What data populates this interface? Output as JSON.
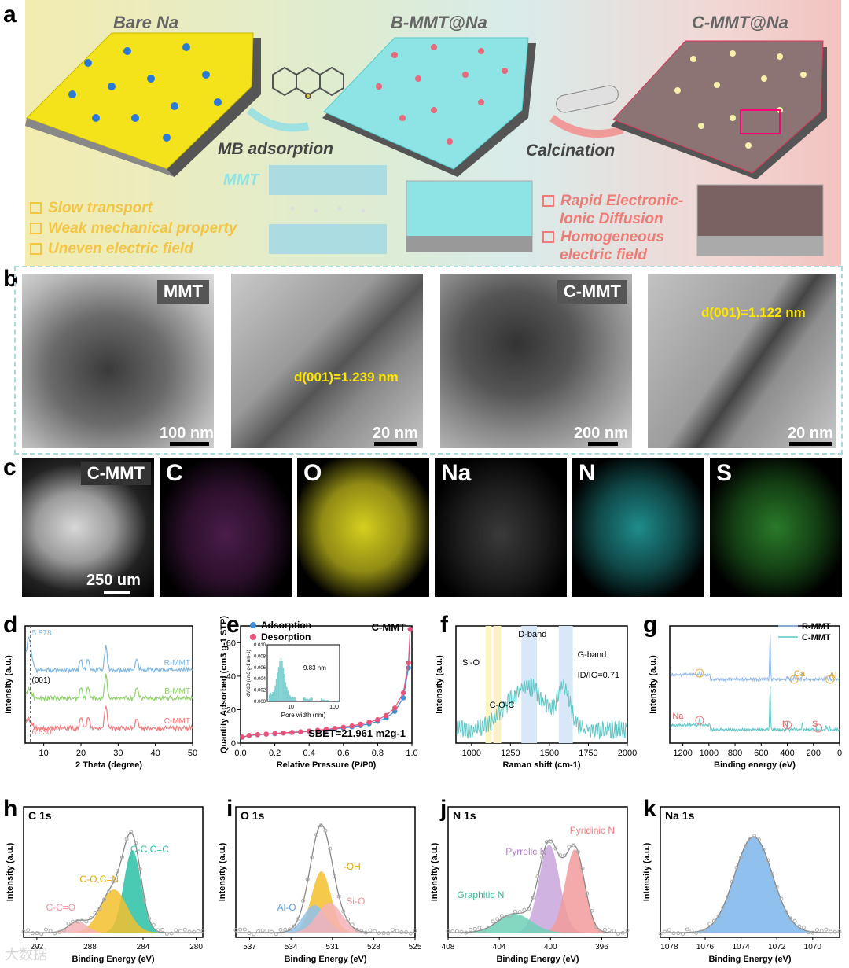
{
  "panel_labels": {
    "a": "a",
    "b": "b",
    "c": "c",
    "d": "d",
    "e": "e",
    "f": "f",
    "g": "g",
    "h": "h",
    "i": "i",
    "j": "j",
    "k": "k"
  },
  "panel_a": {
    "titles": [
      "Bare Na",
      "B-MMT@Na",
      "C-MMT@Na"
    ],
    "mb_adsorption": "MB adsorption",
    "calcination": "Calcination",
    "mmt": "MMT",
    "drawbacks": [
      "Slow transport",
      "Weak mechanical property",
      "Uneven electric field"
    ],
    "benefits": [
      "Rapid Electronic-",
      "Ionic Diffusion",
      "Homogeneous",
      "electric field"
    ],
    "colors": {
      "bare_na": "#f4e21a",
      "b_mmt": "#8ee4e4",
      "c_mmt": "#c99595",
      "drawback_text": "#f2c545",
      "benefit_text": "#ef7a76"
    }
  },
  "panel_b": {
    "tags": [
      "MMT",
      "C-MMT"
    ],
    "scales": [
      "100 nm",
      "20 nm",
      "200 nm",
      "20 nm"
    ],
    "spacings": [
      "d(001)=1.239 nm",
      "d(001)=1.122 nm"
    ]
  },
  "panel_c": {
    "sample": "C-MMT",
    "scale": "250 um",
    "elements": [
      "C",
      "O",
      "Na",
      "N",
      "S"
    ],
    "colors": {
      "C": "#c52ec5",
      "O": "#e8df1f",
      "Na": "#e8e8e8",
      "N": "#2ec6c6",
      "S": "#3fbb3f"
    }
  },
  "chart_data": [
    {
      "id": "d",
      "type": "line",
      "xlabel": "2 Theta (degree)",
      "ylabel": "Intensity (a.u.)",
      "xlim": [
        5,
        50
      ],
      "xticks": [
        10,
        20,
        30,
        40,
        50
      ],
      "annotations": [
        "5.878",
        "(001)",
        "6.530"
      ],
      "series": [
        {
          "name": "R-MMT",
          "color": "#7fb6e0"
        },
        {
          "name": "B-MMT",
          "color": "#8fd16c"
        },
        {
          "name": "C-MMT",
          "color": "#ef7a7a"
        }
      ],
      "peaks": [
        20,
        21.9,
        26.7,
        35
      ]
    },
    {
      "id": "e",
      "type": "line",
      "title": "C-MMT",
      "xlabel": "Relative Pressure (P/P0)",
      "ylabel": "Quantity Adsorbed (cm3 g-1 STP)",
      "xlim": [
        0,
        1
      ],
      "ylim": [
        0,
        70
      ],
      "xticks": [
        "0.0",
        "0.2",
        "0.4",
        "0.6",
        "0.8",
        "1.0"
      ],
      "yticks": [
        "0",
        "20",
        "40",
        "60"
      ],
      "series": [
        {
          "name": "Adsorption",
          "color": "#3f8fd6",
          "x": [
            0.01,
            0.05,
            0.1,
            0.15,
            0.2,
            0.25,
            0.3,
            0.35,
            0.4,
            0.45,
            0.5,
            0.55,
            0.6,
            0.65,
            0.7,
            0.75,
            0.8,
            0.85,
            0.9,
            0.95,
            0.98,
            0.99
          ],
          "y": [
            3.5,
            4.5,
            5,
            5.3,
            5.6,
            6,
            6.3,
            6.6,
            7,
            7.4,
            7.9,
            8.4,
            9,
            9.7,
            10.5,
            11.5,
            13,
            15,
            19,
            27,
            45,
            68
          ]
        },
        {
          "name": "Desorption",
          "color": "#e8537a",
          "x": [
            0.99,
            0.98,
            0.95,
            0.9,
            0.85,
            0.8,
            0.75,
            0.7,
            0.65,
            0.6,
            0.55,
            0.5,
            0.45,
            0.4,
            0.35,
            0.3,
            0.25,
            0.2,
            0.15,
            0.1,
            0.05,
            0.01
          ],
          "y": [
            68,
            48,
            30,
            21,
            16.5,
            14,
            12.5,
            11.3,
            10.3,
            9.5,
            8.8,
            8.2,
            7.7,
            7.2,
            6.8,
            6.4,
            6.1,
            5.8,
            5.4,
            5.1,
            4.6,
            3.6
          ]
        }
      ],
      "sbet": "SBET=21.961 m2g-1",
      "inset": {
        "xlabel": "Pore width (nm)",
        "ylabel": "dV/dD (cm3 g-1 nm-1)",
        "yticks": [
          "0.000",
          "0.002",
          "0.004",
          "0.006",
          "0.008",
          "0.010"
        ],
        "xticks": [
          "10",
          "100"
        ],
        "peak": "9.83 nm"
      }
    },
    {
      "id": "f",
      "type": "line",
      "xlabel": "Raman shift (cm-1)",
      "ylabel": "Intensity (a.u.)",
      "xlim": [
        900,
        2000
      ],
      "xticks": [
        1000,
        1250,
        1500,
        1750,
        2000
      ],
      "annotations": [
        "Si-O",
        "C-O-C",
        "D-band",
        "G-band",
        "ID/IG=0.71"
      ],
      "color": "#5fc6c6"
    },
    {
      "id": "g",
      "type": "line",
      "xlabel": "Binding energy (eV)",
      "ylabel": "Intensity (a.u.)",
      "xticks": [
        1200,
        1000,
        800,
        600,
        400,
        200,
        0
      ],
      "series": [
        {
          "name": "R-MMT",
          "color": "#8fb6e8"
        },
        {
          "name": "C-MMT",
          "color": "#5fc6c6"
        }
      ],
      "annotations": [
        "Ca",
        "Al",
        "Na",
        "N",
        "S"
      ]
    },
    {
      "id": "h",
      "type": "area",
      "title": "C 1s",
      "xlabel": "Binding Energy (eV)",
      "ylabel": "Intensity (a.u.)",
      "xticks": [
        292,
        288,
        284,
        280
      ],
      "components": [
        {
          "name": "C-C,C=C",
          "color": "#2cc1a6",
          "center": 284.8
        },
        {
          "name": "C-O,C=N",
          "color": "#f2c02d",
          "center": 286.2
        },
        {
          "name": "C-C=O",
          "color": "#f4b3b8",
          "center": 288.9
        }
      ]
    },
    {
      "id": "i",
      "type": "area",
      "title": "O 1s",
      "xlabel": "Binding Energy (eV)",
      "ylabel": "Intensity (a.u.)",
      "xticks": [
        537,
        534,
        531,
        528,
        525
      ],
      "components": [
        {
          "name": "-OH",
          "color": "#f2c02d",
          "center": 531.8
        },
        {
          "name": "Al-O",
          "color": "#8fc2ef",
          "center": 532.3
        },
        {
          "name": "Si-O",
          "color": "#f4b3b8",
          "center": 531.2
        }
      ]
    },
    {
      "id": "j",
      "type": "area",
      "title": "N 1s",
      "xlabel": "Binding Energy (eV)",
      "ylabel": "Intensity (a.u.)",
      "xticks": [
        408,
        404,
        400,
        396
      ],
      "components": [
        {
          "name": "Pyrrolic N",
          "color": "#c9a6dd",
          "center": 400.1
        },
        {
          "name": "Pyridinic N",
          "color": "#f29b9b",
          "center": 398.1
        },
        {
          "name": "Graphitic N",
          "color": "#6fd1b7",
          "center": 402.8
        }
      ]
    },
    {
      "id": "k",
      "type": "area",
      "title": "Na 1s",
      "xlabel": "Binding Energy (eV)",
      "ylabel": "Intensity (a.u.)",
      "xticks": [
        1078,
        1076,
        1074,
        1072,
        1070
      ],
      "components": [
        {
          "name": "Na",
          "color": "#7db5ea",
          "center": 1073.3
        }
      ]
    }
  ],
  "watermark": "大数据"
}
